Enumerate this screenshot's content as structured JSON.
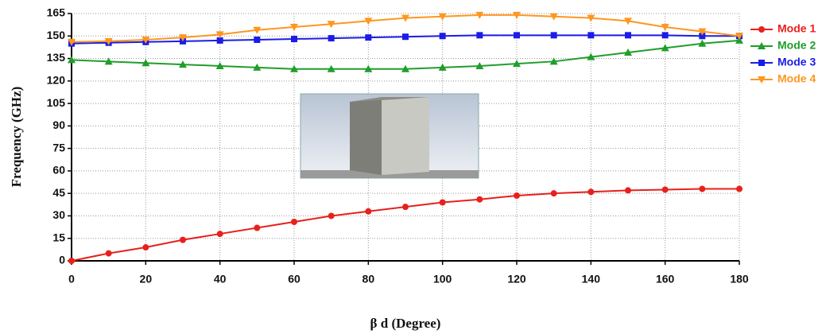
{
  "chart_data": {
    "type": "line",
    "x_label": "β d (Degree)",
    "y_label": "Frequency (GHz)",
    "x": [
      0,
      10,
      20,
      30,
      40,
      50,
      60,
      70,
      80,
      90,
      100,
      110,
      120,
      130,
      140,
      150,
      160,
      170,
      180
    ],
    "series": [
      {
        "name": "Mode 1",
        "color": "#e8201c",
        "marker": "circle",
        "values": [
          0,
          5,
          9,
          14,
          18,
          22,
          26,
          30,
          33,
          36,
          39,
          41,
          43.5,
          45,
          46,
          47,
          47.5,
          48,
          48
        ]
      },
      {
        "name": "Mode 2",
        "color": "#1f9e2a",
        "marker": "triangle-up",
        "values": [
          134,
          133,
          132,
          131,
          130,
          129,
          128,
          128,
          128,
          128,
          129,
          130,
          131.5,
          133,
          136,
          139,
          142,
          145,
          147
        ]
      },
      {
        "name": "Mode 3",
        "color": "#1c1ce6",
        "marker": "square",
        "values": [
          145,
          145.5,
          146,
          146.5,
          147,
          147.5,
          148,
          148.5,
          149,
          149.5,
          150,
          150.5,
          150.5,
          150.5,
          150.5,
          150.5,
          150.5,
          150,
          150
        ]
      },
      {
        "name": "Mode 4",
        "color": "#ff961e",
        "marker": "triangle-down",
        "values": [
          146,
          146.5,
          147.5,
          149,
          151,
          154,
          156,
          158,
          160,
          162,
          163,
          164,
          164,
          163,
          162,
          160,
          156,
          153,
          150
        ]
      }
    ],
    "xlim": [
      0,
      180
    ],
    "xticks": [
      0,
      20,
      40,
      60,
      80,
      100,
      120,
      140,
      160,
      180
    ],
    "ylim": [
      0,
      165
    ],
    "yticks": [
      0,
      15,
      30,
      45,
      60,
      75,
      90,
      105,
      120,
      135,
      150,
      165
    ],
    "grid": true,
    "legend": "right"
  }
}
